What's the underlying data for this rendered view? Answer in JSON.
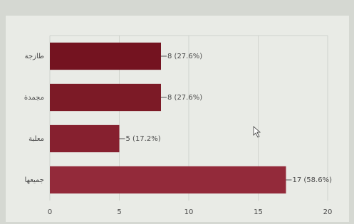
{
  "chart_data": {
    "type": "hbar",
    "categories": [
      "طازجة",
      "مجمدة",
      "معلبة",
      "جميعها"
    ],
    "values": [
      8,
      8,
      5,
      17
    ],
    "value_labels": [
      "8 (27.6%)",
      "8 (27.6%)",
      "5 (17.2%)",
      "17 (58.6%)"
    ],
    "colors": [
      "#741320",
      "#7c1a26",
      "#86202f",
      "#932a3a"
    ],
    "xlim": [
      0,
      20
    ],
    "xticks": [
      0,
      5,
      10,
      15,
      20
    ],
    "grid": true
  }
}
